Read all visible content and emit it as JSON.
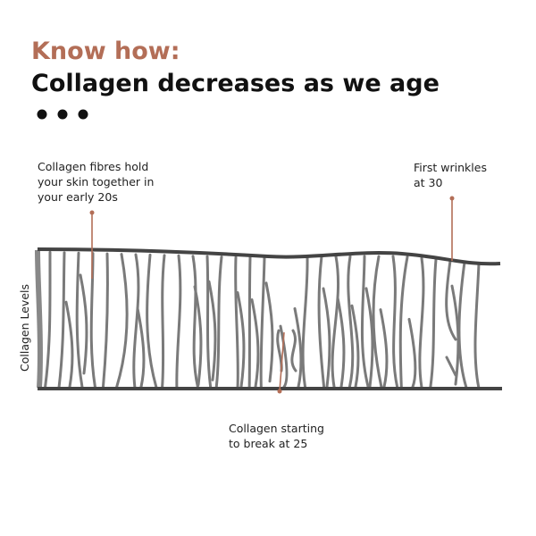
{
  "header": {
    "kicker": "Know how:",
    "title": "Collagen decreases as we age"
  },
  "axis_label": "Collagen Levels",
  "annotations": [
    {
      "lines": [
        "Collagen fibres hold",
        "your skin together in",
        "your early 20s"
      ]
    },
    {
      "lines": [
        "First wrinkles",
        "at 30"
      ]
    },
    {
      "lines": [
        "Collagen starting",
        "to break at 25"
      ]
    }
  ]
}
